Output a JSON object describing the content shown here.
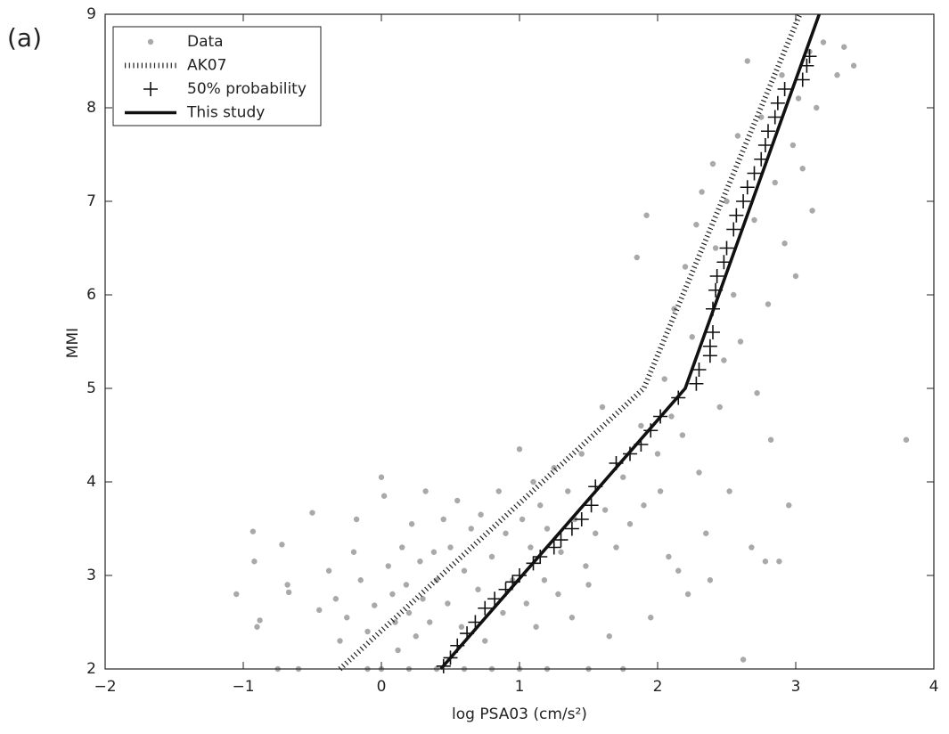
{
  "chart_data": {
    "type": "scatter",
    "panel_label": "(a)",
    "xlabel": "log PSA03 (cm/s²)",
    "ylabel": "MMI",
    "xlim": [
      -2,
      4
    ],
    "ylim": [
      2,
      9
    ],
    "xticks": [
      {
        "value": -2,
        "label": "−2"
      },
      {
        "value": -1,
        "label": "−1"
      },
      0,
      1,
      2,
      3,
      4
    ],
    "yticks": [
      2,
      3,
      4,
      5,
      6,
      7,
      8,
      9
    ],
    "grid": false,
    "legend": "upper left",
    "series": [
      {
        "name": "Data",
        "color": "#a9a9a9",
        "marker": "dot",
        "x": [
          -1.05,
          -0.93,
          -0.92,
          -0.88,
          -0.9,
          -0.75,
          -0.72,
          -0.68,
          -0.67,
          -0.6,
          -0.5,
          -0.45,
          -0.38,
          -0.33,
          -0.3,
          -0.25,
          -0.2,
          -0.18,
          -0.15,
          -0.1,
          -0.05,
          0.0,
          0.02,
          0.05,
          0.08,
          0.1,
          0.12,
          0.15,
          0.18,
          0.2,
          0.22,
          0.25,
          0.28,
          0.3,
          0.32,
          0.35,
          0.38,
          0.4,
          0.45,
          0.48,
          0.5,
          0.55,
          0.58,
          0.6,
          0.65,
          0.7,
          0.72,
          0.75,
          0.8,
          0.85,
          0.88,
          0.9,
          0.95,
          1.0,
          1.02,
          1.05,
          1.08,
          1.1,
          1.12,
          1.15,
          1.18,
          1.2,
          1.25,
          1.28,
          1.3,
          1.35,
          1.38,
          1.4,
          1.45,
          1.48,
          1.5,
          1.55,
          1.6,
          1.62,
          1.65,
          1.7,
          1.75,
          1.8,
          1.85,
          1.88,
          1.9,
          1.92,
          1.95,
          2.0,
          2.02,
          2.05,
          2.08,
          2.1,
          2.12,
          2.15,
          2.18,
          2.2,
          2.22,
          2.25,
          2.28,
          2.3,
          2.32,
          2.35,
          2.38,
          2.4,
          2.42,
          2.45,
          2.48,
          2.5,
          2.52,
          2.55,
          2.58,
          2.6,
          2.62,
          2.65,
          2.68,
          2.7,
          2.72,
          2.75,
          2.78,
          2.8,
          2.82,
          2.85,
          2.88,
          2.9,
          2.92,
          2.95,
          2.98,
          3.0,
          3.02,
          3.05,
          3.1,
          3.12,
          3.15,
          3.2,
          3.3,
          3.35,
          3.42,
          3.8,
          0.0,
          0.2,
          0.4,
          0.6,
          0.8,
          1.0,
          1.2,
          1.5,
          1.75,
          -0.1
        ],
        "values": [
          2.8,
          3.47,
          3.15,
          2.52,
          2.45,
          2.0,
          3.33,
          2.9,
          2.82,
          2.0,
          3.67,
          2.63,
          3.05,
          2.75,
          2.3,
          2.55,
          3.25,
          3.6,
          2.95,
          2.4,
          2.68,
          4.05,
          3.85,
          3.1,
          2.8,
          2.5,
          2.2,
          3.3,
          2.9,
          2.6,
          3.55,
          2.35,
          3.15,
          2.75,
          3.9,
          2.5,
          3.25,
          2.95,
          3.6,
          2.7,
          3.3,
          3.8,
          2.45,
          3.05,
          3.5,
          2.85,
          3.65,
          2.3,
          3.2,
          3.9,
          2.6,
          3.45,
          2.95,
          4.35,
          3.6,
          2.7,
          3.3,
          4.0,
          2.45,
          3.75,
          2.95,
          3.5,
          4.15,
          2.8,
          3.25,
          3.9,
          2.55,
          3.6,
          4.3,
          3.1,
          2.9,
          3.45,
          4.8,
          3.7,
          2.35,
          3.3,
          4.05,
          3.55,
          6.4,
          4.6,
          3.75,
          6.85,
          2.55,
          4.3,
          3.9,
          5.1,
          3.2,
          4.7,
          5.85,
          3.05,
          4.5,
          6.3,
          2.8,
          5.55,
          6.75,
          4.1,
          7.1,
          3.45,
          2.95,
          7.4,
          6.5,
          4.8,
          5.3,
          7.0,
          3.9,
          6.0,
          7.7,
          5.5,
          2.1,
          8.5,
          3.3,
          6.8,
          4.95,
          7.9,
          3.15,
          5.9,
          4.45,
          7.2,
          3.15,
          8.35,
          6.55,
          3.75,
          7.6,
          6.2,
          8.1,
          7.35,
          8.6,
          6.9,
          8.0,
          8.7,
          8.35,
          8.65,
          8.45,
          4.45,
          2,
          2,
          2,
          2,
          2,
          2,
          2,
          2,
          2,
          2
        ]
      },
      {
        "name": "AK07",
        "color": "#222222",
        "marker": "dotted-line",
        "x": [
          -0.3,
          1.9,
          3.03
        ],
        "values": [
          2,
          5,
          9
        ]
      },
      {
        "name": "50% probability",
        "color": "#111111",
        "marker": "plus",
        "x": [
          0.45,
          0.5,
          0.55,
          0.62,
          0.68,
          0.75,
          0.82,
          0.9,
          0.95,
          1.0,
          1.1,
          1.15,
          1.25,
          1.3,
          1.38,
          1.45,
          1.52,
          1.55,
          1.7,
          1.8,
          1.88,
          1.95,
          2.02,
          2.15,
          2.28,
          2.3,
          2.38,
          2.38,
          2.4,
          2.4,
          2.42,
          2.43,
          2.48,
          2.5,
          2.55,
          2.57,
          2.62,
          2.65,
          2.7,
          2.75,
          2.78,
          2.8,
          2.85,
          2.87,
          2.92,
          3.05,
          3.08,
          3.1
        ],
        "values": [
          2.03,
          2.12,
          2.25,
          2.38,
          2.5,
          2.65,
          2.75,
          2.85,
          2.93,
          3.0,
          3.13,
          3.2,
          3.3,
          3.38,
          3.5,
          3.6,
          3.75,
          3.95,
          4.2,
          4.3,
          4.4,
          4.55,
          4.7,
          4.9,
          5.05,
          5.2,
          5.35,
          5.45,
          5.6,
          5.85,
          6.05,
          6.2,
          6.35,
          6.5,
          6.7,
          6.85,
          7.0,
          7.15,
          7.3,
          7.45,
          7.6,
          7.75,
          7.9,
          8.05,
          8.2,
          8.3,
          8.45,
          8.55
        ]
      },
      {
        "name": "This study",
        "color": "#111111",
        "marker": "line",
        "x": [
          0.43,
          2.2,
          3.17
        ],
        "values": [
          2,
          5,
          9
        ]
      }
    ]
  }
}
